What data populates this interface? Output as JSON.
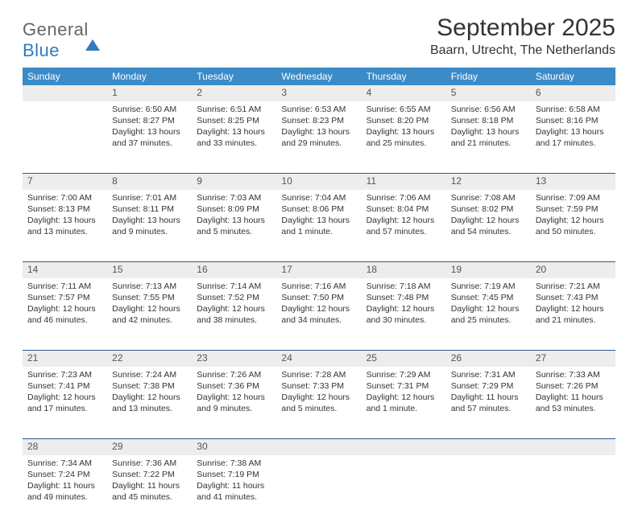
{
  "logo": {
    "word1": "General",
    "word2": "Blue"
  },
  "title": "September 2025",
  "location": "Baarn, Utrecht, The Netherlands",
  "colors": {
    "header_bg": "#3b8bc9",
    "header_text": "#ffffff",
    "daynum_bg": "#ededed",
    "rule": "#2f5a8a",
    "logo_blue": "#2f7bbf",
    "text": "#333333"
  },
  "day_headers": [
    "Sunday",
    "Monday",
    "Tuesday",
    "Wednesday",
    "Thursday",
    "Friday",
    "Saturday"
  ],
  "weeks": [
    [
      null,
      {
        "n": "1",
        "sr": "6:50 AM",
        "ss": "8:27 PM",
        "dl": "13 hours and 37 minutes."
      },
      {
        "n": "2",
        "sr": "6:51 AM",
        "ss": "8:25 PM",
        "dl": "13 hours and 33 minutes."
      },
      {
        "n": "3",
        "sr": "6:53 AM",
        "ss": "8:23 PM",
        "dl": "13 hours and 29 minutes."
      },
      {
        "n": "4",
        "sr": "6:55 AM",
        "ss": "8:20 PM",
        "dl": "13 hours and 25 minutes."
      },
      {
        "n": "5",
        "sr": "6:56 AM",
        "ss": "8:18 PM",
        "dl": "13 hours and 21 minutes."
      },
      {
        "n": "6",
        "sr": "6:58 AM",
        "ss": "8:16 PM",
        "dl": "13 hours and 17 minutes."
      }
    ],
    [
      {
        "n": "7",
        "sr": "7:00 AM",
        "ss": "8:13 PM",
        "dl": "13 hours and 13 minutes."
      },
      {
        "n": "8",
        "sr": "7:01 AM",
        "ss": "8:11 PM",
        "dl": "13 hours and 9 minutes."
      },
      {
        "n": "9",
        "sr": "7:03 AM",
        "ss": "8:09 PM",
        "dl": "13 hours and 5 minutes."
      },
      {
        "n": "10",
        "sr": "7:04 AM",
        "ss": "8:06 PM",
        "dl": "13 hours and 1 minute."
      },
      {
        "n": "11",
        "sr": "7:06 AM",
        "ss": "8:04 PM",
        "dl": "12 hours and 57 minutes."
      },
      {
        "n": "12",
        "sr": "7:08 AM",
        "ss": "8:02 PM",
        "dl": "12 hours and 54 minutes."
      },
      {
        "n": "13",
        "sr": "7:09 AM",
        "ss": "7:59 PM",
        "dl": "12 hours and 50 minutes."
      }
    ],
    [
      {
        "n": "14",
        "sr": "7:11 AM",
        "ss": "7:57 PM",
        "dl": "12 hours and 46 minutes."
      },
      {
        "n": "15",
        "sr": "7:13 AM",
        "ss": "7:55 PM",
        "dl": "12 hours and 42 minutes."
      },
      {
        "n": "16",
        "sr": "7:14 AM",
        "ss": "7:52 PM",
        "dl": "12 hours and 38 minutes."
      },
      {
        "n": "17",
        "sr": "7:16 AM",
        "ss": "7:50 PM",
        "dl": "12 hours and 34 minutes."
      },
      {
        "n": "18",
        "sr": "7:18 AM",
        "ss": "7:48 PM",
        "dl": "12 hours and 30 minutes."
      },
      {
        "n": "19",
        "sr": "7:19 AM",
        "ss": "7:45 PM",
        "dl": "12 hours and 25 minutes."
      },
      {
        "n": "20",
        "sr": "7:21 AM",
        "ss": "7:43 PM",
        "dl": "12 hours and 21 minutes."
      }
    ],
    [
      {
        "n": "21",
        "sr": "7:23 AM",
        "ss": "7:41 PM",
        "dl": "12 hours and 17 minutes."
      },
      {
        "n": "22",
        "sr": "7:24 AM",
        "ss": "7:38 PM",
        "dl": "12 hours and 13 minutes."
      },
      {
        "n": "23",
        "sr": "7:26 AM",
        "ss": "7:36 PM",
        "dl": "12 hours and 9 minutes."
      },
      {
        "n": "24",
        "sr": "7:28 AM",
        "ss": "7:33 PM",
        "dl": "12 hours and 5 minutes."
      },
      {
        "n": "25",
        "sr": "7:29 AM",
        "ss": "7:31 PM",
        "dl": "12 hours and 1 minute."
      },
      {
        "n": "26",
        "sr": "7:31 AM",
        "ss": "7:29 PM",
        "dl": "11 hours and 57 minutes."
      },
      {
        "n": "27",
        "sr": "7:33 AM",
        "ss": "7:26 PM",
        "dl": "11 hours and 53 minutes."
      }
    ],
    [
      {
        "n": "28",
        "sr": "7:34 AM",
        "ss": "7:24 PM",
        "dl": "11 hours and 49 minutes."
      },
      {
        "n": "29",
        "sr": "7:36 AM",
        "ss": "7:22 PM",
        "dl": "11 hours and 45 minutes."
      },
      {
        "n": "30",
        "sr": "7:38 AM",
        "ss": "7:19 PM",
        "dl": "11 hours and 41 minutes."
      },
      null,
      null,
      null,
      null
    ]
  ],
  "labels": {
    "sunrise": "Sunrise:",
    "sunset": "Sunset:",
    "daylight": "Daylight:"
  }
}
